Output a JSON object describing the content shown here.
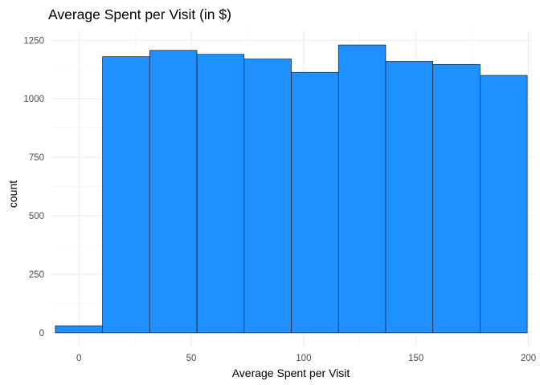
{
  "chart_data": {
    "type": "bar",
    "subtype": "histogram",
    "title": "Average Spent per Visit (in $)",
    "xlabel": "Average Spent per Visit",
    "ylabel": "count",
    "bins": [
      {
        "x_start": -10.5,
        "x_end": 10.5,
        "count": 30
      },
      {
        "x_start": 10.5,
        "x_end": 31.5,
        "count": 1180
      },
      {
        "x_start": 31.5,
        "x_end": 52.5,
        "count": 1207
      },
      {
        "x_start": 52.5,
        "x_end": 73.5,
        "count": 1190
      },
      {
        "x_start": 73.5,
        "x_end": 94.5,
        "count": 1170
      },
      {
        "x_start": 94.5,
        "x_end": 115.5,
        "count": 1113
      },
      {
        "x_start": 115.5,
        "x_end": 136.5,
        "count": 1230
      },
      {
        "x_start": 136.5,
        "x_end": 157.5,
        "count": 1160
      },
      {
        "x_start": 157.5,
        "x_end": 178.5,
        "count": 1147
      },
      {
        "x_start": 178.5,
        "x_end": 199.5,
        "count": 1100
      }
    ],
    "xlim": [
      -12.6,
      201.6
    ],
    "ylim": [
      -62,
      1292
    ],
    "x_ticks": [
      0,
      50,
      100,
      150,
      200
    ],
    "x_tick_labels": [
      "0",
      "50",
      "100",
      "150",
      "200"
    ],
    "y_ticks": [
      0,
      250,
      500,
      750,
      1000,
      1250
    ],
    "y_tick_labels": [
      "0",
      "250",
      "500",
      "750",
      "1000",
      "1250"
    ],
    "grid": true,
    "legend": "none",
    "bar_color": "#1E90FF",
    "bar_outline": "#1a1a1a"
  }
}
